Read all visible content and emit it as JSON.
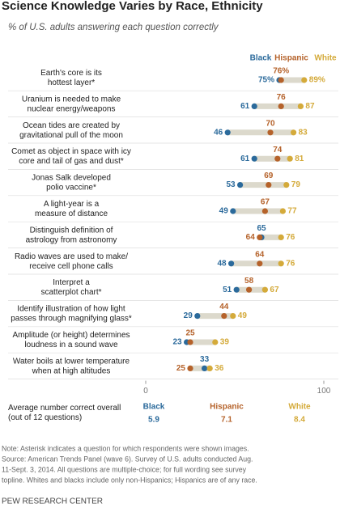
{
  "chart_data": {
    "type": "dot",
    "title": "Science Knowledge Varies by Race, Ethnicity",
    "subtitle": "% of U.S. adults answering each question correctly",
    "categories": [
      "Earth's core is its\nhottest layer*",
      "Uranium is needed to make\nnuclear energy/weapons",
      "Ocean tides are created by\ngravitational pull of the moon",
      "Comet as object in space with icy\ncore and tail of gas and dust*",
      "Jonas Salk developed\npolio vaccine*",
      "A light-year is a\nmeasure of distance",
      "Distinguish definition of\nastrology from astronomy",
      "Radio waves are used to make/\nreceive cell phone calls",
      "Interpret a\nscatterplot chart*",
      "Identify illustration of how light\npasses through magnifying glass*",
      "Amplitude (or height) determines\nloudness in a sound wave",
      "Water boils at lower temperature\nwhen at high altitudes"
    ],
    "series": [
      {
        "name": "Black",
        "color": "#2b6a9b",
        "values": [
          75,
          61,
          46,
          61,
          53,
          49,
          65,
          48,
          51,
          29,
          23,
          33
        ],
        "value_labels": [
          "75%",
          "61",
          "46",
          "61",
          "53",
          "49",
          "65",
          "48",
          "51",
          "29",
          "23",
          "33"
        ],
        "average": "5.9"
      },
      {
        "name": "Hispanic",
        "color": "#b5622a",
        "values": [
          76,
          76,
          70,
          74,
          69,
          67,
          64,
          64,
          58,
          44,
          25,
          25
        ],
        "value_labels": [
          "76%",
          "76",
          "70",
          "74",
          "69",
          "67",
          "64",
          "64",
          "58",
          "44",
          "25",
          "25"
        ],
        "average": "7.1"
      },
      {
        "name": "White",
        "color": "#d4aa3a",
        "values": [
          89,
          87,
          83,
          81,
          79,
          77,
          76,
          76,
          67,
          49,
          39,
          36
        ],
        "value_labels": [
          "89%",
          "87",
          "83",
          "81",
          "79",
          "77",
          "76",
          "76",
          "67",
          "49",
          "39",
          "36"
        ],
        "average": "8.4"
      }
    ],
    "xlim": [
      0,
      100
    ],
    "xticks": [
      0,
      100
    ],
    "averages_label": "Average number correct overall\n(out of 12 questions)",
    "notes": [
      "Note: Asterisk indicates a question for which respondents were shown images.",
      "Source: American Trends Panel (wave 6). Survey of U.S. adults conducted Aug.",
      "11-Sept. 3, 2014. All questions are multiple-choice; for full wording see survey",
      "topline. Whites and blacks include only non-Hispanics; Hispanics are of any race."
    ],
    "source": "PEW RESEARCH CENTER"
  }
}
